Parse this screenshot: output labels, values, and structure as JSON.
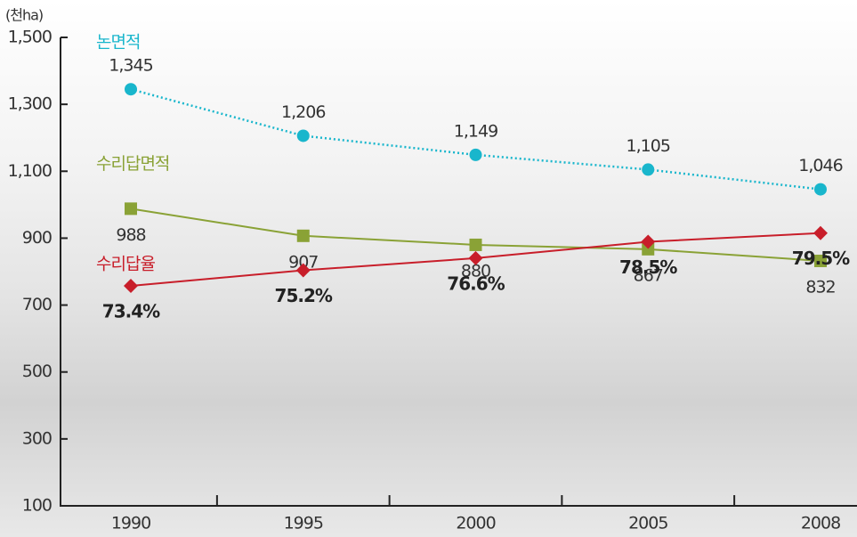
{
  "chart_data": {
    "type": "line",
    "y_label": "(천ha)",
    "categories": [
      "1990",
      "1995",
      "2000",
      "2005",
      "2008"
    ],
    "ylim": [
      100,
      1500
    ],
    "yticks": [
      100,
      300,
      500,
      700,
      900,
      {
        "value": 1100,
        "label": "1,100"
      },
      {
        "value": 1300,
        "label": "1,300"
      },
      {
        "value": 1500,
        "label": "1,500"
      }
    ],
    "y2lim": [
      48,
      102.1
    ],
    "series": [
      {
        "name": "논면적",
        "color": "#19b6cc",
        "marker": "circle",
        "dash": "dotted",
        "values": [
          1345,
          1206,
          1149,
          1105,
          1046
        ],
        "value_labels": [
          "1,345",
          "1,206",
          "1,149",
          "1,105",
          "1,046"
        ]
      },
      {
        "name": "수리답면적",
        "color": "#8aa236",
        "marker": "square",
        "dash": "solid",
        "values": [
          988,
          907,
          880,
          867,
          832
        ]
      },
      {
        "name": "수리답율",
        "color": "#c81e2a",
        "marker": "diamond",
        "dash": "solid",
        "axis": "y2",
        "values": [
          73.4,
          75.2,
          76.6,
          78.5,
          79.5
        ],
        "value_labels": [
          "73.4%",
          "75.2%",
          "76.6%",
          "78.5%",
          "79.5%"
        ]
      }
    ]
  }
}
